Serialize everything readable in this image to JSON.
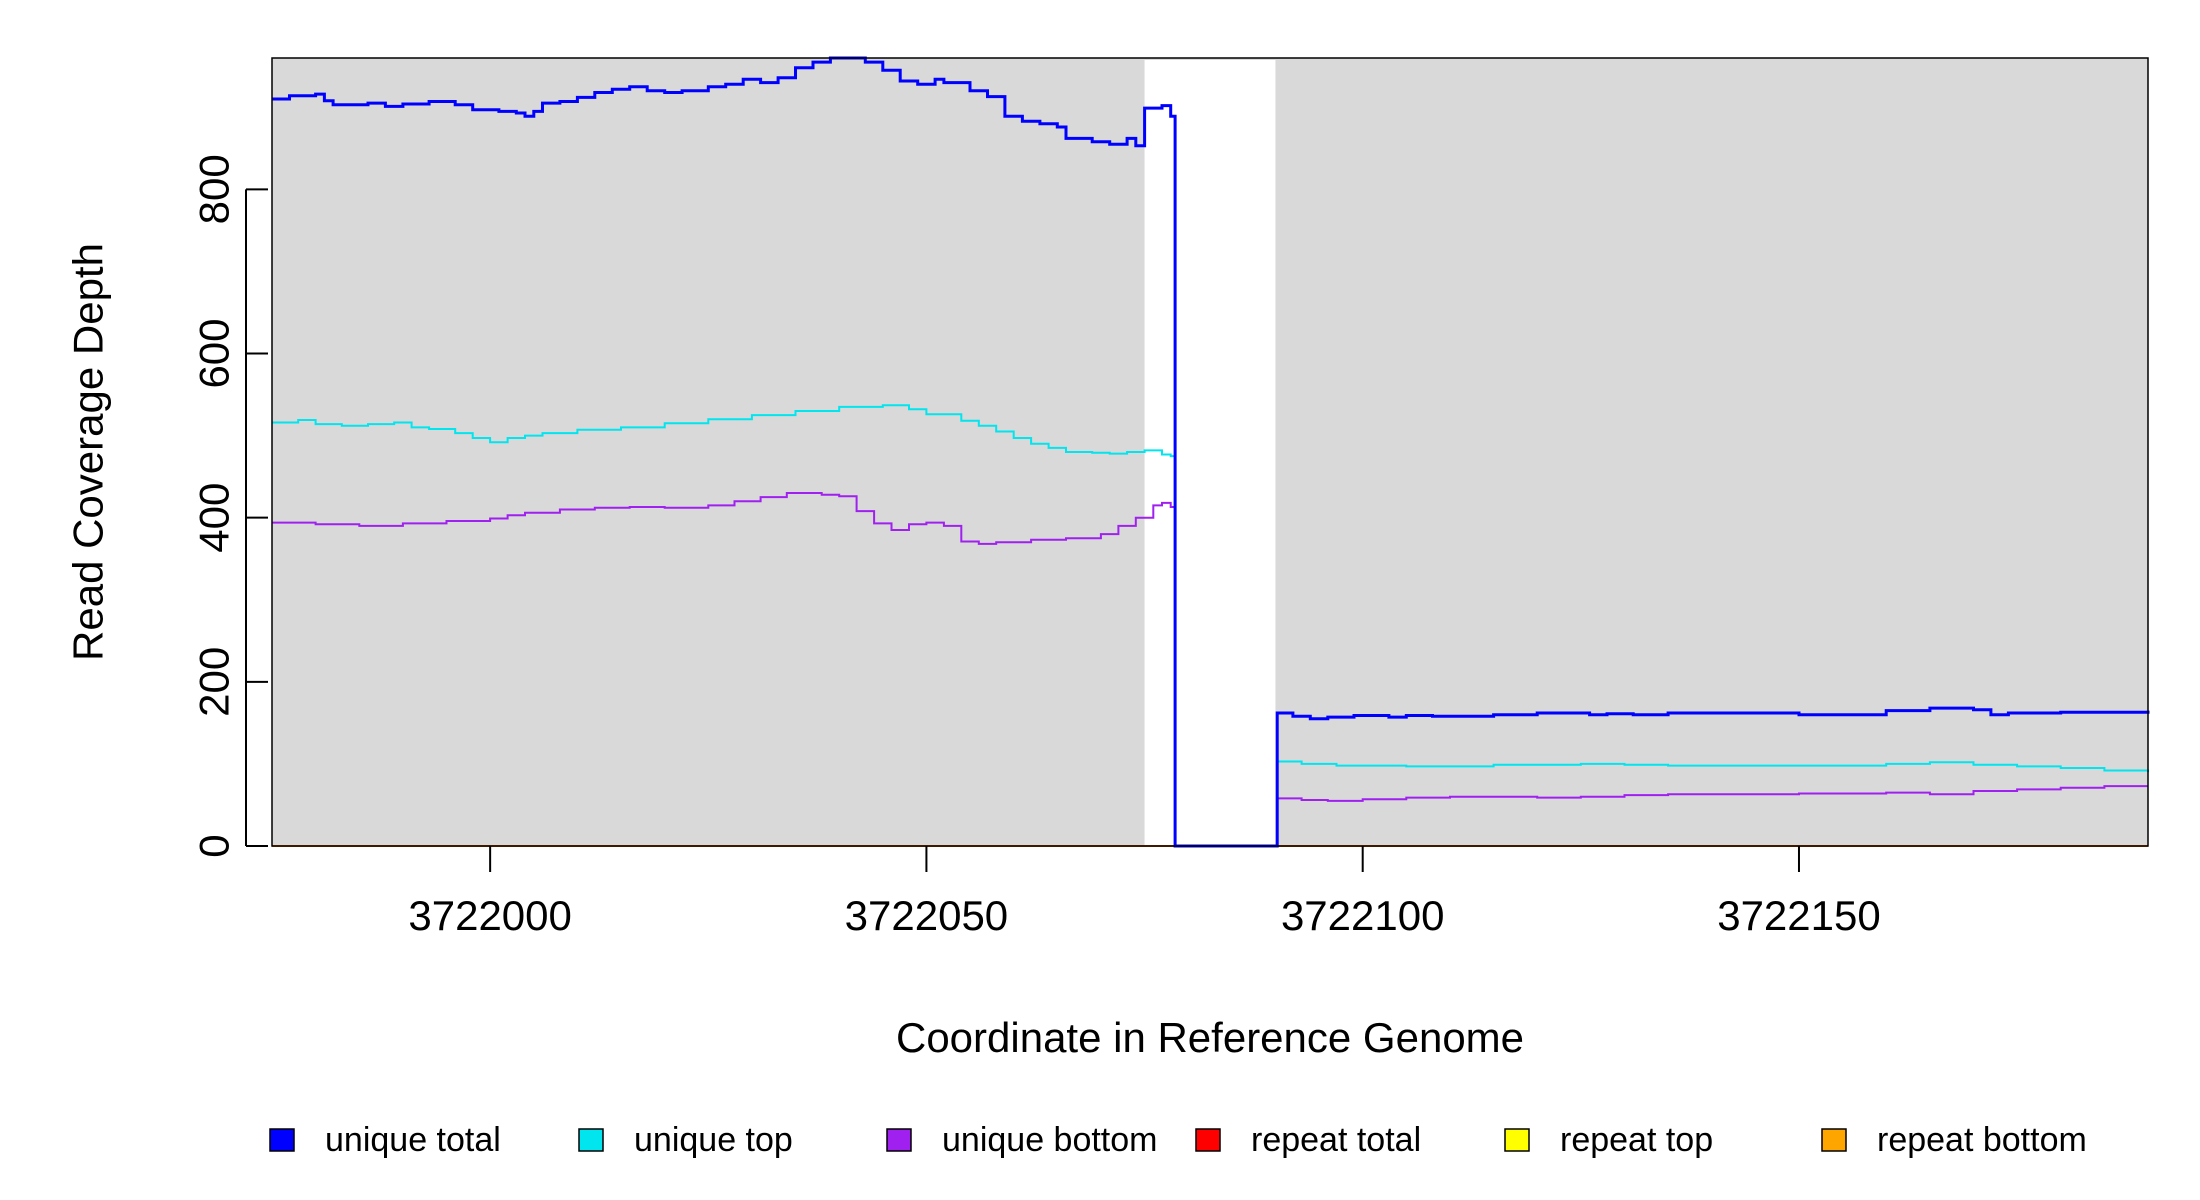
{
  "chart_data": {
    "type": "line",
    "step": true,
    "title": "",
    "xlabel": "Coordinate in Reference Genome",
    "ylabel": "Read Coverage Depth",
    "xlim": [
      3721975,
      3722190
    ],
    "ylim": [
      0,
      960
    ],
    "xticks": [
      3722000,
      3722050,
      3722100,
      3722150
    ],
    "yticks": [
      0,
      200,
      400,
      600,
      800
    ],
    "background": "#d9d9d9",
    "gap_region": [
      3722075,
      3722090
    ],
    "legend_position": "bottom",
    "series": [
      {
        "name": "unique total",
        "color": "#0000ff",
        "width": 3,
        "points": [
          [
            3721975,
            910
          ],
          [
            3721977,
            914
          ],
          [
            3721980,
            916
          ],
          [
            3721981,
            908
          ],
          [
            3721982,
            903
          ],
          [
            3721986,
            905
          ],
          [
            3721988,
            901
          ],
          [
            3721990,
            904
          ],
          [
            3721993,
            907
          ],
          [
            3721996,
            903
          ],
          [
            3721998,
            897
          ],
          [
            3722001,
            895
          ],
          [
            3722003,
            893
          ],
          [
            3722004,
            889
          ],
          [
            3722005,
            895
          ],
          [
            3722006,
            905
          ],
          [
            3722008,
            907
          ],
          [
            3722010,
            912
          ],
          [
            3722012,
            918
          ],
          [
            3722014,
            922
          ],
          [
            3722016,
            925
          ],
          [
            3722018,
            920
          ],
          [
            3722020,
            918
          ],
          [
            3722022,
            920
          ],
          [
            3722025,
            925
          ],
          [
            3722027,
            928
          ],
          [
            3722029,
            934
          ],
          [
            3722031,
            930
          ],
          [
            3722033,
            936
          ],
          [
            3722035,
            948
          ],
          [
            3722037,
            955
          ],
          [
            3722039,
            960
          ],
          [
            3722043,
            955
          ],
          [
            3722045,
            945
          ],
          [
            3722047,
            932
          ],
          [
            3722049,
            928
          ],
          [
            3722051,
            934
          ],
          [
            3722052,
            930
          ],
          [
            3722055,
            920
          ],
          [
            3722057,
            913
          ],
          [
            3722059,
            889
          ],
          [
            3722061,
            883
          ],
          [
            3722063,
            880
          ],
          [
            3722065,
            876
          ],
          [
            3722066,
            862
          ],
          [
            3722069,
            858
          ],
          [
            3722071,
            855
          ],
          [
            3722073,
            862
          ],
          [
            3722074,
            853
          ],
          [
            3722075,
            899
          ],
          [
            3722077,
            902
          ],
          [
            3722078,
            889
          ],
          [
            3722078.5,
            0
          ],
          [
            3722090,
            0
          ],
          [
            3722090.2,
            162
          ],
          [
            3722092,
            158
          ],
          [
            3722094,
            155
          ],
          [
            3722096,
            157
          ],
          [
            3722099,
            159
          ],
          [
            3722103,
            157
          ],
          [
            3722105,
            159
          ],
          [
            3722108,
            158
          ],
          [
            3722115,
            160
          ],
          [
            3722120,
            162
          ],
          [
            3722126,
            160
          ],
          [
            3722128,
            161
          ],
          [
            3722131,
            160
          ],
          [
            3722135,
            162
          ],
          [
            3722150,
            160
          ],
          [
            3722160,
            165
          ],
          [
            3722165,
            168
          ],
          [
            3722170,
            166
          ],
          [
            3722172,
            160
          ],
          [
            3722174,
            162
          ],
          [
            3722180,
            163
          ],
          [
            3722190,
            165
          ]
        ]
      },
      {
        "name": "unique top",
        "color": "#00e5ee",
        "width": 2,
        "points": [
          [
            3721975,
            516
          ],
          [
            3721978,
            519
          ],
          [
            3721980,
            514
          ],
          [
            3721983,
            512
          ],
          [
            3721986,
            514
          ],
          [
            3721989,
            516
          ],
          [
            3721991,
            510
          ],
          [
            3721993,
            508
          ],
          [
            3721996,
            503
          ],
          [
            3721998,
            497
          ],
          [
            3722000,
            492
          ],
          [
            3722002,
            497
          ],
          [
            3722004,
            500
          ],
          [
            3722006,
            503
          ],
          [
            3722010,
            507
          ],
          [
            3722015,
            510
          ],
          [
            3722020,
            515
          ],
          [
            3722025,
            520
          ],
          [
            3722030,
            525
          ],
          [
            3722035,
            530
          ],
          [
            3722040,
            535
          ],
          [
            3722045,
            537
          ],
          [
            3722048,
            532
          ],
          [
            3722050,
            526
          ],
          [
            3722054,
            518
          ],
          [
            3722056,
            512
          ],
          [
            3722058,
            505
          ],
          [
            3722060,
            497
          ],
          [
            3722062,
            490
          ],
          [
            3722064,
            485
          ],
          [
            3722066,
            480
          ],
          [
            3722069,
            479
          ],
          [
            3722071,
            478
          ],
          [
            3722073,
            480
          ],
          [
            3722075,
            482
          ],
          [
            3722077,
            477
          ],
          [
            3722078,
            475
          ],
          [
            3722078.5,
            0
          ],
          [
            3722090,
            0
          ],
          [
            3722090.2,
            103
          ],
          [
            3722093,
            100
          ],
          [
            3722097,
            98
          ],
          [
            3722105,
            97
          ],
          [
            3722115,
            99
          ],
          [
            3722125,
            100
          ],
          [
            3722130,
            99
          ],
          [
            3722135,
            98
          ],
          [
            3722150,
            98
          ],
          [
            3722160,
            100
          ],
          [
            3722165,
            102
          ],
          [
            3722170,
            99
          ],
          [
            3722175,
            97
          ],
          [
            3722180,
            95
          ],
          [
            3722185,
            92
          ],
          [
            3722190,
            90
          ]
        ]
      },
      {
        "name": "unique bottom",
        "color": "#a020f0",
        "width": 2,
        "points": [
          [
            3721975,
            394
          ],
          [
            3721980,
            392
          ],
          [
            3721985,
            390
          ],
          [
            3721990,
            393
          ],
          [
            3721995,
            396
          ],
          [
            3722000,
            399
          ],
          [
            3722002,
            403
          ],
          [
            3722004,
            406
          ],
          [
            3722008,
            410
          ],
          [
            3722012,
            412
          ],
          [
            3722016,
            413
          ],
          [
            3722020,
            412
          ],
          [
            3722025,
            415
          ],
          [
            3722028,
            420
          ],
          [
            3722031,
            425
          ],
          [
            3722034,
            430
          ],
          [
            3722038,
            428
          ],
          [
            3722040,
            426
          ],
          [
            3722042,
            408
          ],
          [
            3722044,
            393
          ],
          [
            3722046,
            385
          ],
          [
            3722048,
            392
          ],
          [
            3722050,
            394
          ],
          [
            3722052,
            390
          ],
          [
            3722054,
            371
          ],
          [
            3722056,
            368
          ],
          [
            3722058,
            370
          ],
          [
            3722062,
            373
          ],
          [
            3722066,
            375
          ],
          [
            3722070,
            380
          ],
          [
            3722072,
            390
          ],
          [
            3722074,
            400
          ],
          [
            3722076,
            415
          ],
          [
            3722077,
            418
          ],
          [
            3722078,
            413
          ],
          [
            3722078.5,
            0
          ],
          [
            3722090,
            0
          ],
          [
            3722090.2,
            58
          ],
          [
            3722093,
            56
          ],
          [
            3722096,
            55
          ],
          [
            3722100,
            57
          ],
          [
            3722105,
            59
          ],
          [
            3722110,
            60
          ],
          [
            3722120,
            59
          ],
          [
            3722125,
            60
          ],
          [
            3722130,
            62
          ],
          [
            3722135,
            63
          ],
          [
            3722150,
            64
          ],
          [
            3722160,
            65
          ],
          [
            3722165,
            63
          ],
          [
            3722170,
            67
          ],
          [
            3722175,
            69
          ],
          [
            3722180,
            71
          ],
          [
            3722185,
            73
          ],
          [
            3722190,
            73
          ]
        ]
      },
      {
        "name": "repeat total",
        "color": "#ff0000",
        "width": 1.5,
        "points": [
          [
            3721975,
            0
          ],
          [
            3722190,
            0
          ]
        ]
      },
      {
        "name": "repeat top",
        "color": "#ffff00",
        "width": 1.5,
        "points": [
          [
            3721975,
            0
          ],
          [
            3722190,
            0
          ]
        ]
      },
      {
        "name": "repeat bottom",
        "color": "#ffa500",
        "width": 2,
        "points": [
          [
            3721975,
            0
          ],
          [
            3722190,
            0
          ]
        ]
      }
    ]
  }
}
